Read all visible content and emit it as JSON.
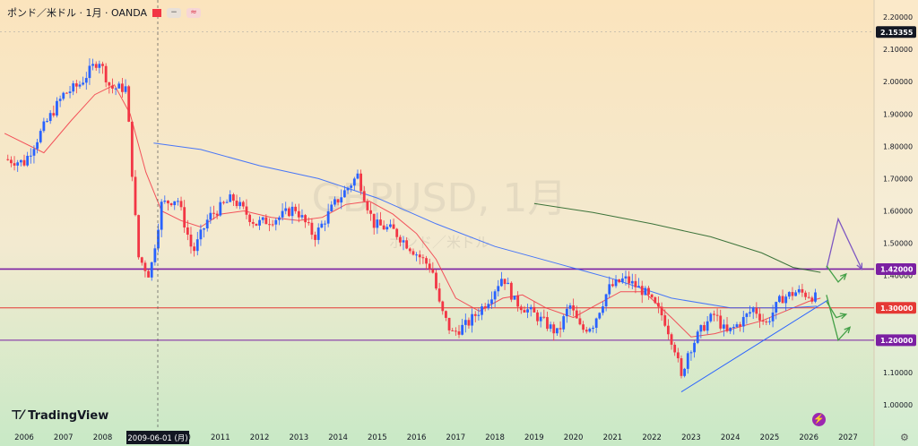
{
  "header": {
    "symbol": "ポンド／米ドル · 1月 · OANDA",
    "flag_icon": "red-flag-icon",
    "button_1_icon": "minus-icon",
    "button_2_icon": "approx-icon"
  },
  "watermark": {
    "line1": "GBPUSD, 1月",
    "line2": "ポンド／米ドル"
  },
  "logo": {
    "text": "TradingView",
    "icon": "tv-logo-icon"
  },
  "crosshair_date_label": "2009-06-01 (月)",
  "colors": {
    "background_top": "#fbe4bd",
    "background_bottom": "#c8e9c6",
    "up": "#2962ff",
    "down": "#f23645",
    "ma_short": "#f23645",
    "ma_mid": "#2962ff",
    "ma_long": "#1b5e20",
    "level_purple": "#7b1fa2",
    "level_red": "#e53935",
    "trend_blue": "#2962ff",
    "arrow_green": "#43a047",
    "arrow_purple": "#7e57c2"
  },
  "chart_data": {
    "type": "candlestick",
    "symbol": "GBPUSD",
    "timeframe": "1月",
    "ylim": [
      0.93,
      2.24
    ],
    "y_ticks": [
      "2.20000",
      "2.10000",
      "2.00000",
      "1.90000",
      "1.80000",
      "1.70000",
      "1.60000",
      "1.50000",
      "1.40000",
      "1.30000",
      "1.20000",
      "1.10000",
      "1.00000"
    ],
    "x_ticks": [
      "2006",
      "2007",
      "2008",
      "2010",
      "2011",
      "2012",
      "2013",
      "2014",
      "2015",
      "2016",
      "2017",
      "2018",
      "2019",
      "2020",
      "2021",
      "2022",
      "2023",
      "2024",
      "2025",
      "2026",
      "2027"
    ],
    "price_labels": [
      {
        "text": "2.15355",
        "value": 2.15355
      },
      {
        "text": "1.42000",
        "value": 1.42
      },
      {
        "text": "1.30000",
        "value": 1.3
      },
      {
        "text": "1.20000",
        "value": 1.2
      }
    ],
    "horizontal_levels": [
      1.42,
      1.3,
      1.2
    ],
    "candle_path": [
      [
        2005.5,
        1.76
      ],
      [
        2006.0,
        1.75
      ],
      [
        2006.5,
        1.86
      ],
      [
        2007.0,
        1.96
      ],
      [
        2007.4,
        1.99
      ],
      [
        2007.9,
        2.07
      ],
      [
        2008.2,
        1.98
      ],
      [
        2008.6,
        1.98
      ],
      [
        2008.9,
        1.46
      ],
      [
        2009.2,
        1.4
      ],
      [
        2009.5,
        1.62
      ],
      [
        2009.9,
        1.64
      ],
      [
        2010.3,
        1.47
      ],
      [
        2010.7,
        1.58
      ],
      [
        2011.3,
        1.64
      ],
      [
        2011.9,
        1.56
      ],
      [
        2012.5,
        1.58
      ],
      [
        2012.9,
        1.61
      ],
      [
        2013.4,
        1.52
      ],
      [
        2013.9,
        1.62
      ],
      [
        2014.5,
        1.71
      ],
      [
        2014.9,
        1.56
      ],
      [
        2015.4,
        1.54
      ],
      [
        2015.9,
        1.48
      ],
      [
        2016.4,
        1.42
      ],
      [
        2016.6,
        1.3
      ],
      [
        2016.9,
        1.22
      ],
      [
        2017.3,
        1.25
      ],
      [
        2017.8,
        1.32
      ],
      [
        2018.2,
        1.4
      ],
      [
        2018.5,
        1.32
      ],
      [
        2019.0,
        1.28
      ],
      [
        2019.6,
        1.22
      ],
      [
        2019.9,
        1.31
      ],
      [
        2020.2,
        1.23
      ],
      [
        2020.5,
        1.25
      ],
      [
        2020.9,
        1.36
      ],
      [
        2021.3,
        1.39
      ],
      [
        2021.8,
        1.35
      ],
      [
        2022.3,
        1.27
      ],
      [
        2022.6,
        1.17
      ],
      [
        2022.75,
        1.08
      ],
      [
        2022.9,
        1.16
      ],
      [
        2023.3,
        1.24
      ],
      [
        2023.6,
        1.28
      ],
      [
        2023.9,
        1.22
      ],
      [
        2024.3,
        1.26
      ],
      [
        2024.6,
        1.3
      ],
      [
        2024.9,
        1.25
      ],
      [
        2025.3,
        1.33
      ],
      [
        2025.7,
        1.35
      ],
      [
        2026.0,
        1.34
      ],
      [
        2026.2,
        1.33
      ]
    ],
    "moving_averages": [
      {
        "name": "short",
        "points": [
          [
            2005.5,
            1.84
          ],
          [
            2006.5,
            1.78
          ],
          [
            2007.2,
            1.88
          ],
          [
            2007.8,
            1.96
          ],
          [
            2008.3,
            1.99
          ],
          [
            2008.7,
            1.9
          ],
          [
            2009.1,
            1.72
          ],
          [
            2009.5,
            1.6
          ],
          [
            2010.0,
            1.57
          ],
          [
            2010.5,
            1.55
          ],
          [
            2011.0,
            1.59
          ],
          [
            2011.6,
            1.6
          ],
          [
            2012.3,
            1.58
          ],
          [
            2013.0,
            1.57
          ],
          [
            2013.6,
            1.58
          ],
          [
            2014.2,
            1.62
          ],
          [
            2014.8,
            1.63
          ],
          [
            2015.4,
            1.59
          ],
          [
            2016.0,
            1.53
          ],
          [
            2016.5,
            1.45
          ],
          [
            2017.0,
            1.33
          ],
          [
            2017.6,
            1.29
          ],
          [
            2018.2,
            1.33
          ],
          [
            2018.7,
            1.34
          ],
          [
            2019.3,
            1.3
          ],
          [
            2020.0,
            1.27
          ],
          [
            2020.6,
            1.31
          ],
          [
            2021.2,
            1.35
          ],
          [
            2021.8,
            1.35
          ],
          [
            2022.5,
            1.27
          ],
          [
            2023.0,
            1.21
          ],
          [
            2023.6,
            1.22
          ],
          [
            2024.2,
            1.24
          ],
          [
            2024.8,
            1.26
          ],
          [
            2025.4,
            1.29
          ],
          [
            2026.0,
            1.32
          ],
          [
            2026.3,
            1.33
          ]
        ]
      },
      {
        "name": "mid",
        "points": [
          [
            2009.3,
            1.81
          ],
          [
            2010.5,
            1.79
          ],
          [
            2012.0,
            1.74
          ],
          [
            2013.5,
            1.7
          ],
          [
            2015.0,
            1.64
          ],
          [
            2016.5,
            1.56
          ],
          [
            2018.0,
            1.49
          ],
          [
            2019.5,
            1.44
          ],
          [
            2021.0,
            1.39
          ],
          [
            2022.5,
            1.33
          ],
          [
            2024.0,
            1.3
          ],
          [
            2025.5,
            1.3
          ],
          [
            2026.2,
            1.305
          ]
        ]
      },
      {
        "name": "long",
        "points": [
          [
            2019.0,
            1.623
          ],
          [
            2020.5,
            1.595
          ],
          [
            2022.0,
            1.56
          ],
          [
            2023.5,
            1.52
          ],
          [
            2024.8,
            1.47
          ],
          [
            2025.6,
            1.425
          ],
          [
            2026.3,
            1.41
          ]
        ]
      }
    ],
    "trend_line": [
      [
        2022.75,
        1.04
      ],
      [
        2026.5,
        1.325
      ]
    ],
    "projection_arrows": [
      {
        "color": "purple",
        "points": [
          [
            2026.45,
            1.42
          ],
          [
            2026.75,
            1.575
          ],
          [
            2027.35,
            1.42
          ]
        ]
      },
      {
        "color": "green",
        "points": [
          [
            2026.45,
            1.43
          ],
          [
            2026.75,
            1.38
          ],
          [
            2026.95,
            1.405
          ]
        ]
      },
      {
        "color": "green",
        "points": [
          [
            2026.45,
            1.32
          ],
          [
            2026.7,
            1.27
          ],
          [
            2026.95,
            1.28
          ]
        ]
      },
      {
        "color": "green",
        "points": [
          [
            2026.45,
            1.34
          ],
          [
            2026.75,
            1.2
          ],
          [
            2027.05,
            1.24
          ]
        ]
      }
    ]
  }
}
